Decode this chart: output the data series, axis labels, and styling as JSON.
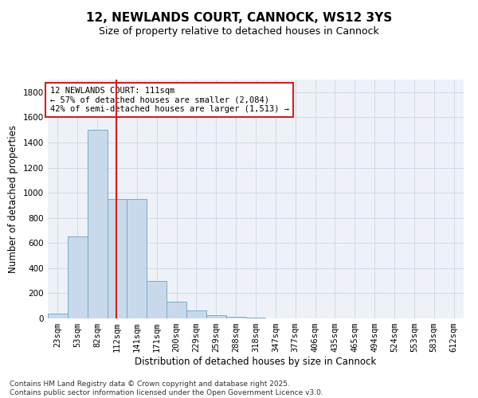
{
  "title": "12, NEWLANDS COURT, CANNOCK, WS12 3YS",
  "subtitle": "Size of property relative to detached houses in Cannock",
  "xlabel": "Distribution of detached houses by size in Cannock",
  "ylabel": "Number of detached properties",
  "categories": [
    "23sqm",
    "53sqm",
    "82sqm",
    "112sqm",
    "141sqm",
    "171sqm",
    "200sqm",
    "229sqm",
    "259sqm",
    "288sqm",
    "318sqm",
    "347sqm",
    "377sqm",
    "406sqm",
    "435sqm",
    "465sqm",
    "494sqm",
    "524sqm",
    "553sqm",
    "583sqm",
    "612sqm"
  ],
  "values": [
    40,
    650,
    1500,
    950,
    950,
    295,
    130,
    65,
    25,
    10,
    5,
    2,
    1,
    1,
    0,
    0,
    0,
    0,
    0,
    0,
    0
  ],
  "bar_color": "#c8d9eb",
  "bar_edge_color": "#7aaac8",
  "vline_color": "#cc2222",
  "vline_x_index": 2.97,
  "annotation_text": "12 NEWLANDS COURT: 111sqm\n← 57% of detached houses are smaller (2,084)\n42% of semi-detached houses are larger (1,513) →",
  "annotation_box_color": "#cc2222",
  "background_color": "#eef2f8",
  "grid_color": "#d0d8e8",
  "ylim": [
    0,
    1900
  ],
  "yticks": [
    0,
    200,
    400,
    600,
    800,
    1000,
    1200,
    1400,
    1600,
    1800
  ],
  "footnote": "Contains HM Land Registry data © Crown copyright and database right 2025.\nContains public sector information licensed under the Open Government Licence v3.0.",
  "title_fontsize": 11,
  "subtitle_fontsize": 9,
  "xlabel_fontsize": 8.5,
  "ylabel_fontsize": 8.5,
  "tick_fontsize": 7.5,
  "annot_fontsize": 7.5,
  "footnote_fontsize": 6.5
}
